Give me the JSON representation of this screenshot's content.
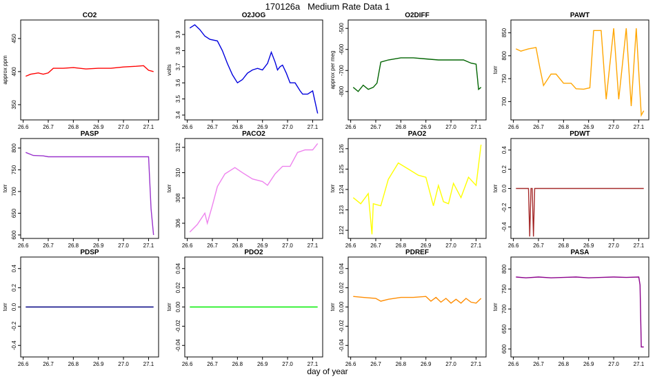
{
  "title": "170126a   Medium Rate Data 1",
  "xlabel": "day of year",
  "chart_data": [
    {
      "type": "line",
      "title": "CO2",
      "ylabel": "approx ppm",
      "color": "#ff0000",
      "xlim": [
        26.59,
        27.14
      ],
      "ylim": [
        327,
        478
      ],
      "yticks": [
        350,
        400,
        450
      ],
      "xticks": [
        26.6,
        26.7,
        26.8,
        26.9,
        27.0,
        27.1
      ],
      "series": [
        {
          "x": [
            26.61,
            26.63,
            26.66,
            26.68,
            26.7,
            26.72,
            26.76,
            26.8,
            26.85,
            26.9,
            26.95,
            27.0,
            27.05,
            27.08,
            27.1,
            27.11,
            27.12
          ],
          "values": [
            393,
            396,
            398,
            396,
            398,
            405,
            405,
            406,
            404,
            405,
            405,
            407,
            408,
            409,
            402,
            401,
            400
          ]
        }
      ]
    },
    {
      "type": "line",
      "title": "O2JOG",
      "ylabel": "volts",
      "color": "#0000dd",
      "xlim": [
        26.59,
        27.14
      ],
      "ylim": [
        3.37,
        3.99
      ],
      "yticks": [
        3.4,
        3.5,
        3.6,
        3.7,
        3.8,
        3.9
      ],
      "xticks": [
        26.6,
        26.7,
        26.8,
        26.9,
        27.0,
        27.1
      ],
      "series": [
        {
          "x": [
            26.61,
            26.63,
            26.65,
            26.67,
            26.69,
            26.72,
            26.74,
            26.76,
            26.78,
            26.8,
            26.82,
            26.84,
            26.86,
            26.88,
            26.9,
            26.92,
            26.935,
            26.95,
            26.96,
            26.97,
            26.98,
            26.995,
            27.01,
            27.03,
            27.05,
            27.06,
            27.08,
            27.1,
            27.11,
            27.12
          ],
          "values": [
            3.94,
            3.96,
            3.93,
            3.89,
            3.87,
            3.86,
            3.8,
            3.72,
            3.65,
            3.6,
            3.62,
            3.66,
            3.68,
            3.69,
            3.68,
            3.72,
            3.79,
            3.73,
            3.68,
            3.7,
            3.71,
            3.66,
            3.6,
            3.6,
            3.55,
            3.53,
            3.53,
            3.55,
            3.48,
            3.41
          ]
        }
      ]
    },
    {
      "type": "line",
      "title": "O2DIFF",
      "ylabel": "approx per meg",
      "color": "#006400",
      "xlim": [
        26.59,
        27.14
      ],
      "ylim": [
        -935,
        -460
      ],
      "yticks": [
        -800,
        -700,
        -600,
        -500
      ],
      "xticks": [
        26.6,
        26.7,
        26.8,
        26.9,
        27.0,
        27.1
      ],
      "series": [
        {
          "x": [
            26.61,
            26.63,
            26.65,
            26.67,
            26.69,
            26.705,
            26.72,
            26.75,
            26.8,
            26.85,
            26.9,
            26.95,
            27.0,
            27.05,
            27.08,
            27.1,
            27.11,
            27.12
          ],
          "values": [
            -780,
            -800,
            -770,
            -790,
            -780,
            -760,
            -660,
            -650,
            -640,
            -640,
            -645,
            -650,
            -650,
            -650,
            -665,
            -670,
            -790,
            -780
          ]
        }
      ]
    },
    {
      "type": "line",
      "title": "PAWT",
      "ylabel": "torr",
      "color": "#ffa500",
      "xlim": [
        26.59,
        27.14
      ],
      "ylim": [
        660,
        878
      ],
      "yticks": [
        700,
        750,
        800,
        850
      ],
      "xticks": [
        26.6,
        26.7,
        26.8,
        26.9,
        27.0,
        27.1
      ],
      "series": [
        {
          "x": [
            26.61,
            26.63,
            26.66,
            26.69,
            26.705,
            26.72,
            26.75,
            26.77,
            26.8,
            26.83,
            26.85,
            26.88,
            26.905,
            26.92,
            26.95,
            26.97,
            27.0,
            27.02,
            27.05,
            27.07,
            27.09,
            27.11,
            27.12
          ],
          "values": [
            815,
            810,
            815,
            818,
            775,
            735,
            760,
            760,
            740,
            740,
            728,
            727,
            730,
            855,
            855,
            705,
            860,
            705,
            860,
            690,
            860,
            670,
            680
          ]
        }
      ]
    },
    {
      "type": "line",
      "title": "PASP",
      "ylabel": "torr",
      "color": "#9932cc",
      "xlim": [
        26.59,
        27.14
      ],
      "ylim": [
        592,
        822
      ],
      "yticks": [
        600,
        650,
        700,
        750,
        800
      ],
      "xticks": [
        26.6,
        26.7,
        26.8,
        26.9,
        27.0,
        27.1
      ],
      "series": [
        {
          "x": [
            26.61,
            26.64,
            26.68,
            26.7,
            26.75,
            26.78,
            26.82,
            26.86,
            26.9,
            26.94,
            26.98,
            27.02,
            27.06,
            27.1,
            27.11,
            27.12
          ],
          "values": [
            790,
            783,
            782,
            780,
            780,
            780,
            780,
            780,
            780,
            780,
            780,
            780,
            780,
            780,
            660,
            600
          ]
        }
      ]
    },
    {
      "type": "line",
      "title": "PACO2",
      "ylabel": "torr",
      "color": "#ee82ee",
      "xlim": [
        26.59,
        27.14
      ],
      "ylim": [
        304.8,
        312.7
      ],
      "yticks": [
        306,
        308,
        310,
        312
      ],
      "xticks": [
        26.6,
        26.7,
        26.8,
        26.9,
        27.0,
        27.1
      ],
      "series": [
        {
          "x": [
            26.61,
            26.64,
            26.67,
            26.68,
            26.7,
            26.72,
            26.75,
            26.79,
            26.82,
            26.86,
            26.9,
            26.92,
            26.95,
            26.98,
            27.01,
            27.04,
            27.07,
            27.1,
            27.12
          ],
          "values": [
            305.3,
            305.9,
            306.8,
            306.0,
            307.4,
            308.9,
            309.9,
            310.4,
            310.0,
            309.5,
            309.3,
            309.0,
            309.9,
            310.5,
            310.5,
            311.6,
            311.8,
            311.8,
            312.3
          ]
        }
      ]
    },
    {
      "type": "line",
      "title": "PAO2",
      "ylabel": "torr",
      "color": "#ffff00",
      "xlim": [
        26.59,
        27.14
      ],
      "ylim": [
        121.6,
        126.5
      ],
      "yticks": [
        122,
        123,
        124,
        125,
        126
      ],
      "xticks": [
        26.6,
        26.7,
        26.8,
        26.9,
        27.0,
        27.1
      ],
      "series": [
        {
          "x": [
            26.61,
            26.64,
            26.67,
            26.685,
            26.69,
            26.72,
            26.75,
            26.79,
            26.83,
            26.87,
            26.9,
            26.93,
            26.95,
            26.97,
            26.99,
            27.01,
            27.04,
            27.07,
            27.1,
            27.12
          ],
          "values": [
            123.6,
            123.3,
            123.8,
            121.8,
            123.3,
            123.2,
            124.5,
            125.3,
            125.0,
            124.7,
            124.6,
            123.2,
            124.2,
            123.4,
            123.3,
            124.3,
            123.6,
            124.6,
            124.2,
            126.2
          ]
        }
      ]
    },
    {
      "type": "line",
      "title": "PDWT",
      "ylabel": "torr",
      "color": "#a52a2a",
      "xlim": [
        26.59,
        27.14
      ],
      "ylim": [
        -0.52,
        0.52
      ],
      "yticks": [
        -0.4,
        -0.2,
        0.0,
        0.2,
        0.4
      ],
      "xticks": [
        26.6,
        26.7,
        26.8,
        26.9,
        27.0,
        27.1
      ],
      "series": [
        {
          "x": [
            26.61,
            26.66,
            26.665,
            26.67,
            26.675,
            26.68,
            26.685,
            26.69,
            26.8,
            26.9,
            27.0,
            27.12
          ],
          "values": [
            0.0,
            0.0,
            -0.5,
            0.0,
            0.0,
            -0.5,
            0.0,
            0.0,
            0.0,
            0.0,
            0.0,
            0.0
          ]
        }
      ]
    },
    {
      "type": "line",
      "title": "PDSP",
      "ylabel": "torr",
      "color": "#000080",
      "xlim": [
        26.59,
        27.14
      ],
      "ylim": [
        -0.52,
        0.52
      ],
      "yticks": [
        -0.4,
        -0.2,
        0.0,
        0.2,
        0.4
      ],
      "xticks": [
        26.6,
        26.7,
        26.8,
        26.9,
        27.0,
        27.1
      ],
      "series": [
        {
          "x": [
            26.61,
            26.7,
            26.8,
            26.9,
            27.0,
            27.12
          ],
          "values": [
            0.0,
            0.0,
            0.0,
            0.0,
            0.0,
            0.0
          ]
        }
      ]
    },
    {
      "type": "line",
      "title": "PDO2",
      "ylabel": "torr",
      "color": "#00ee00",
      "xlim": [
        26.59,
        27.14
      ],
      "ylim": [
        -0.052,
        0.052
      ],
      "yticks": [
        -0.04,
        -0.02,
        0.0,
        0.02,
        0.04
      ],
      "xticks": [
        26.6,
        26.7,
        26.8,
        26.9,
        27.0,
        27.1
      ],
      "series": [
        {
          "x": [
            26.61,
            26.7,
            26.8,
            26.9,
            27.0,
            27.12
          ],
          "values": [
            0.0,
            0.0,
            0.0,
            0.0,
            0.0,
            0.0
          ]
        }
      ]
    },
    {
      "type": "line",
      "title": "PDREF",
      "ylabel": "torr",
      "color": "#ff8c00",
      "xlim": [
        26.59,
        27.14
      ],
      "ylim": [
        -0.052,
        0.052
      ],
      "yticks": [
        -0.04,
        -0.02,
        0.0,
        0.02,
        0.04
      ],
      "xticks": [
        26.6,
        26.7,
        26.8,
        26.9,
        27.0,
        27.1
      ],
      "series": [
        {
          "x": [
            26.61,
            26.65,
            26.7,
            26.72,
            26.75,
            26.8,
            26.85,
            26.9,
            26.92,
            26.94,
            26.96,
            26.98,
            27.0,
            27.02,
            27.04,
            27.06,
            27.08,
            27.1,
            27.12
          ],
          "values": [
            0.011,
            0.01,
            0.009,
            0.006,
            0.008,
            0.01,
            0.01,
            0.011,
            0.006,
            0.01,
            0.005,
            0.009,
            0.004,
            0.008,
            0.004,
            0.009,
            0.005,
            0.004,
            0.009
          ]
        }
      ]
    },
    {
      "type": "line",
      "title": "PASA",
      "ylabel": "torr",
      "color": "#8b008b",
      "xlim": [
        26.59,
        27.14
      ],
      "ylim": [
        580,
        830
      ],
      "yticks": [
        600,
        650,
        700,
        750,
        800
      ],
      "xticks": [
        26.6,
        26.7,
        26.8,
        26.9,
        27.0,
        27.1
      ],
      "series": [
        {
          "x": [
            26.61,
            26.65,
            26.7,
            26.75,
            26.8,
            26.85,
            26.9,
            26.95,
            27.0,
            27.05,
            27.1,
            27.105,
            27.11,
            27.12
          ],
          "values": [
            780,
            778,
            780,
            778,
            779,
            780,
            778,
            779,
            780,
            779,
            780,
            760,
            605,
            605
          ]
        }
      ]
    }
  ]
}
